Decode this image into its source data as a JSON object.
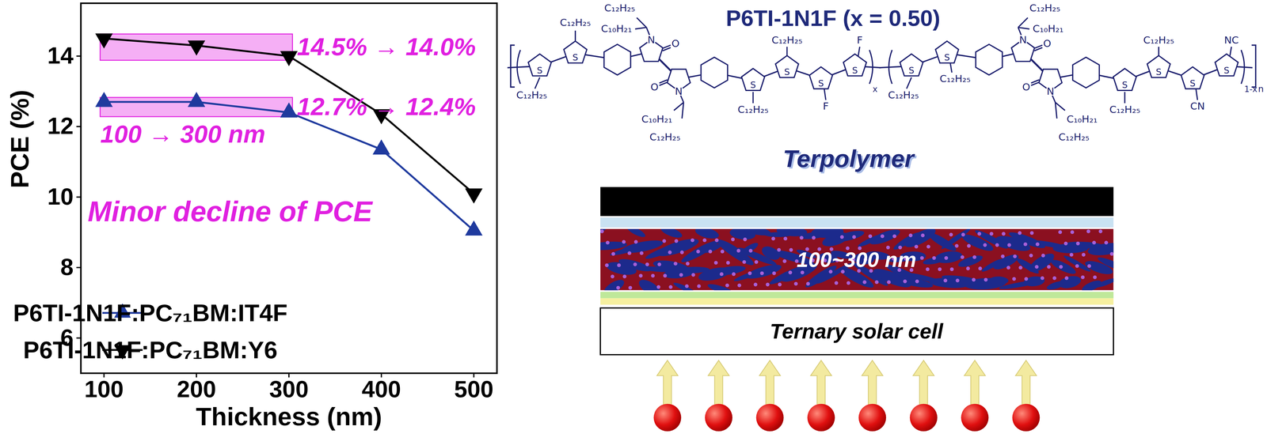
{
  "chart_data": {
    "type": "line",
    "xlabel": "Thickness (nm)",
    "ylabel": "PCE (%)",
    "x": [
      100,
      200,
      300,
      400,
      500
    ],
    "xlim": [
      75,
      525
    ],
    "xticks": [
      100,
      200,
      300,
      400,
      500
    ],
    "ylim": [
      5,
      15.5
    ],
    "yticks": [
      6,
      8,
      10,
      12,
      14
    ],
    "grid": false,
    "legend": "lower left",
    "series": [
      {
        "name": "P6TI-1N1F:PC₇₁BM:IT4F",
        "color": "#1f3a9e",
        "marker": "triangle-up",
        "values": [
          12.7,
          12.7,
          12.4,
          11.35,
          9.05
        ]
      },
      {
        "name": "P6TI-1N1F:PC₇₁BM:Y6",
        "color": "#000000",
        "marker": "triangle-down",
        "values": [
          14.5,
          14.3,
          14.0,
          12.35,
          10.1
        ]
      }
    ],
    "highlight_x": [
      100,
      300
    ],
    "annotations": [
      {
        "text": "14.5% → 14.0%",
        "series": "P6TI-1N1F:PC₇₁BM:Y6"
      },
      {
        "text": "12.7% → 12.4%",
        "series": "P6TI-1N1F:PC₇₁BM:IT4F"
      },
      {
        "text": "100 → 300 nm"
      },
      {
        "text": "Minor decline of PCE"
      }
    ]
  },
  "structure": {
    "title": "P6TI-1N1F (x = 0.50)",
    "label": "Terpolymer",
    "ring_atom": "S",
    "lactam_atoms": [
      "N",
      "O"
    ],
    "side_chain": "C₁₂H₂₅",
    "branched_chain": [
      "C₁₂H₂₅",
      "C₁₀H₂₁"
    ],
    "units": [
      {
        "substituents": [
          "F",
          "F"
        ],
        "subscript": "x"
      },
      {
        "substituents": [
          "CN",
          "NC"
        ],
        "subscript": "1-x"
      }
    ],
    "repeat": "n"
  },
  "device": {
    "layer_label": "100~300 nm",
    "substrate_label": "Ternary solar cell"
  }
}
